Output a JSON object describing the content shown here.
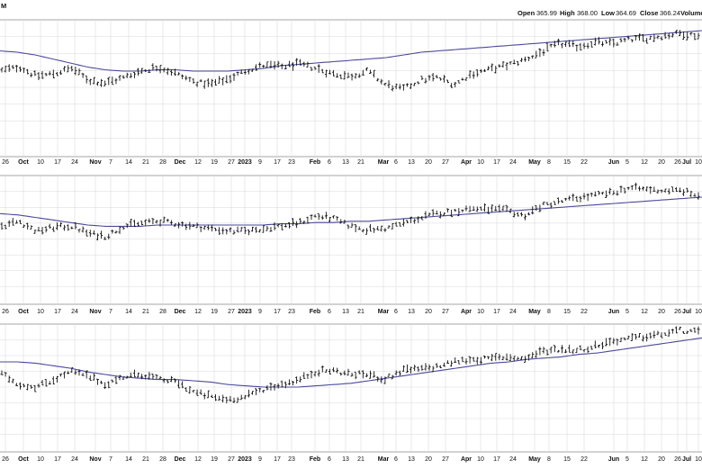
{
  "header": {
    "corner_text": "M",
    "open_label": "Open",
    "open_value": "365.99",
    "high_label": "High",
    "high_value": "368.00",
    "low_label": "Low",
    "low_value": "364.69",
    "close_label": "Close",
    "close_value": "366.24",
    "volume_label": "Volume"
  },
  "colors": {
    "background": "#ffffff",
    "grid": "#d9d9d9",
    "price_bars": "#111111",
    "moving_average": "#4a4a9c",
    "axis_text": "#111111"
  },
  "chart_data": [
    {
      "type": "ohlc",
      "moving_average": true,
      "x_tick_labels": [
        "26",
        "Oct",
        "10",
        "17",
        "24",
        "Nov",
        "7",
        "14",
        "21",
        "28",
        "Dec",
        "12",
        "19",
        "27",
        "2023",
        "9",
        "17",
        "23",
        "Feb",
        "6",
        "13",
        "21",
        "Mar",
        "6",
        "13",
        "20",
        "27",
        "Apr",
        "10",
        "17",
        "24",
        "May",
        "8",
        "15",
        "22",
        "Jun",
        "5",
        "12",
        "20",
        "26",
        "Jul",
        "10"
      ],
      "bold_tick_labels": [
        "Oct",
        "Nov",
        "Dec",
        "2023",
        "Feb",
        "Mar",
        "Apr",
        "May",
        "Jun",
        "Jul"
      ],
      "price_path": [
        0.62,
        0.65,
        0.58,
        0.6,
        0.64,
        0.55,
        0.53,
        0.57,
        0.62,
        0.65,
        0.6,
        0.54,
        0.52,
        0.56,
        0.62,
        0.66,
        0.65,
        0.67,
        0.64,
        0.6,
        0.58,
        0.62,
        0.52,
        0.48,
        0.55,
        0.57,
        0.52,
        0.6,
        0.63,
        0.66,
        0.7,
        0.76,
        0.82,
        0.8,
        0.83,
        0.82,
        0.85,
        0.86,
        0.88,
        0.9,
        0.88
      ],
      "moving_average_path": [
        0.77,
        0.76,
        0.74,
        0.71,
        0.68,
        0.65,
        0.63,
        0.62,
        0.62,
        0.63,
        0.63,
        0.62,
        0.62,
        0.62,
        0.63,
        0.64,
        0.66,
        0.67,
        0.68,
        0.69,
        0.7,
        0.71,
        0.72,
        0.74,
        0.76,
        0.77,
        0.78,
        0.79,
        0.8,
        0.81,
        0.82,
        0.83,
        0.84,
        0.85,
        0.86,
        0.87,
        0.88,
        0.89,
        0.9,
        0.91,
        0.92
      ]
    },
    {
      "type": "ohlc",
      "moving_average": true,
      "x_tick_labels": [
        "26",
        "Oct",
        "10",
        "17",
        "24",
        "Nov",
        "7",
        "14",
        "21",
        "28",
        "Dec",
        "12",
        "19",
        "27",
        "2023",
        "9",
        "17",
        "23",
        "Feb",
        "6",
        "13",
        "21",
        "Mar",
        "6",
        "13",
        "20",
        "27",
        "Apr",
        "10",
        "17",
        "24",
        "May",
        "8",
        "15",
        "22",
        "Jun",
        "5",
        "12",
        "20",
        "26",
        "Jul",
        "10"
      ],
      "bold_tick_labels": [
        "Oct",
        "Nov",
        "Dec",
        "2023",
        "Feb",
        "Mar",
        "Apr",
        "May",
        "Jun",
        "Jul"
      ],
      "price_path": [
        0.6,
        0.64,
        0.56,
        0.59,
        0.6,
        0.54,
        0.52,
        0.6,
        0.62,
        0.64,
        0.62,
        0.6,
        0.58,
        0.56,
        0.56,
        0.58,
        0.6,
        0.62,
        0.68,
        0.66,
        0.6,
        0.57,
        0.58,
        0.62,
        0.66,
        0.7,
        0.72,
        0.74,
        0.73,
        0.72,
        0.68,
        0.76,
        0.79,
        0.82,
        0.84,
        0.86,
        0.9,
        0.89,
        0.88,
        0.88,
        0.84
      ],
      "moving_average_path": [
        0.7,
        0.69,
        0.67,
        0.65,
        0.63,
        0.61,
        0.6,
        0.6,
        0.6,
        0.61,
        0.61,
        0.61,
        0.61,
        0.61,
        0.61,
        0.61,
        0.62,
        0.62,
        0.63,
        0.63,
        0.64,
        0.64,
        0.65,
        0.66,
        0.67,
        0.68,
        0.69,
        0.7,
        0.71,
        0.72,
        0.73,
        0.74,
        0.75,
        0.76,
        0.77,
        0.78,
        0.79,
        0.8,
        0.81,
        0.82,
        0.83
      ]
    },
    {
      "type": "ohlc",
      "moving_average": true,
      "x_tick_labels": [
        "26",
        "Oct",
        "10",
        "17",
        "24",
        "Nov",
        "7",
        "14",
        "21",
        "28",
        "Dec",
        "12",
        "19",
        "27",
        "2023",
        "9",
        "17",
        "23",
        "Feb",
        "6",
        "13",
        "21",
        "Mar",
        "6",
        "13",
        "20",
        "27",
        "Apr",
        "10",
        "17",
        "24",
        "May",
        "8",
        "15",
        "22",
        "Jun",
        "5",
        "12",
        "20",
        "26",
        "Jul",
        "10"
      ],
      "bold_tick_labels": [
        "Oct",
        "Nov",
        "Dec",
        "2023",
        "Feb",
        "Mar",
        "Apr",
        "May",
        "Jun",
        "Jul"
      ],
      "price_path": [
        0.6,
        0.52,
        0.5,
        0.56,
        0.62,
        0.58,
        0.52,
        0.58,
        0.6,
        0.56,
        0.54,
        0.46,
        0.42,
        0.4,
        0.42,
        0.48,
        0.52,
        0.55,
        0.62,
        0.63,
        0.6,
        0.6,
        0.56,
        0.63,
        0.64,
        0.66,
        0.7,
        0.72,
        0.72,
        0.74,
        0.72,
        0.78,
        0.8,
        0.79,
        0.82,
        0.86,
        0.88,
        0.9,
        0.92,
        0.95,
        0.93
      ],
      "moving_average_path": [
        0.7,
        0.7,
        0.69,
        0.67,
        0.65,
        0.62,
        0.6,
        0.58,
        0.57,
        0.56,
        0.56,
        0.55,
        0.54,
        0.52,
        0.51,
        0.5,
        0.5,
        0.5,
        0.51,
        0.52,
        0.53,
        0.55,
        0.57,
        0.59,
        0.61,
        0.63,
        0.65,
        0.67,
        0.69,
        0.7,
        0.72,
        0.73,
        0.74,
        0.76,
        0.77,
        0.79,
        0.81,
        0.83,
        0.85,
        0.87,
        0.89
      ]
    }
  ]
}
